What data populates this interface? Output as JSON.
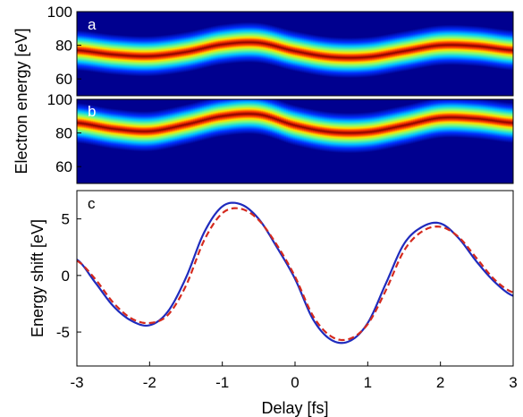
{
  "panel_labels": {
    "a": "a",
    "b": "b",
    "c": "c"
  },
  "colors": {
    "solid_curve": "#1f2bbd",
    "dashed_curve": "#d42a1e",
    "spectrogram_background": "#00008f"
  },
  "chart_data": [
    {
      "type": "heatmap",
      "panel": "a",
      "ylabel": "Electron energy [eV]",
      "ylim": [
        50,
        100
      ],
      "xlim": [
        -3,
        3
      ],
      "yticks": [
        "60",
        "80",
        "100"
      ],
      "colormap": "jet",
      "ridge": {
        "x": [
          -3,
          -2.5,
          -2,
          -1.5,
          -1,
          -0.5,
          0,
          0.5,
          1,
          1.5,
          2,
          2.5,
          3
        ],
        "y": [
          77,
          74.5,
          73.5,
          76,
          80.5,
          81.5,
          76.5,
          73,
          73,
          76.5,
          80,
          79.5,
          77
        ]
      }
    },
    {
      "type": "heatmap",
      "panel": "b",
      "ylabel": "Electron energy [eV]",
      "ylim": [
        50,
        100
      ],
      "xlim": [
        -3,
        3
      ],
      "yticks": [
        "60",
        "80",
        "100"
      ],
      "colormap": "jet",
      "ridge": {
        "x": [
          -3,
          -2.5,
          -2,
          -1.5,
          -1,
          -0.5,
          0,
          0.5,
          1,
          1.5,
          2,
          2.5,
          3
        ],
        "y": [
          86,
          82.5,
          81,
          85,
          90,
          91,
          84.5,
          80.5,
          80.5,
          84.5,
          89,
          88.5,
          86
        ]
      }
    },
    {
      "type": "line",
      "panel": "c",
      "xlabel": "Delay [fs]",
      "ylabel": "Energy shift [eV]",
      "xlim": [
        -3,
        3
      ],
      "ylim": [
        -8,
        7.5
      ],
      "xticks": [
        "-3",
        "-2",
        "-1",
        "0",
        "1",
        "2",
        "3"
      ],
      "yticks": [
        "-5",
        "0",
        "5"
      ],
      "grid": false,
      "series": [
        {
          "style": "solid",
          "x": [
            -3,
            -2.75,
            -2.5,
            -2.25,
            -2,
            -1.75,
            -1.5,
            -1.25,
            -1,
            -0.75,
            -0.5,
            -0.25,
            0,
            0.25,
            0.5,
            0.75,
            1,
            1.25,
            1.5,
            1.75,
            2,
            2.25,
            2.5,
            2.75,
            3
          ],
          "y": [
            1.4,
            -0.6,
            -2.7,
            -4.0,
            -4.4,
            -3.2,
            -0.2,
            3.8,
            6.1,
            6.3,
            5.0,
            2.5,
            -0.3,
            -3.9,
            -5.7,
            -5.8,
            -4.2,
            -0.7,
            2.8,
            4.3,
            4.6,
            3.3,
            1.2,
            -0.6,
            -1.8
          ]
        },
        {
          "style": "dashed",
          "x": [
            -3,
            -2.75,
            -2.5,
            -2.25,
            -2,
            -1.75,
            -1.5,
            -1.25,
            -1,
            -0.75,
            -0.5,
            -0.25,
            0,
            0.25,
            0.5,
            0.75,
            1,
            1.25,
            1.5,
            1.75,
            2,
            2.25,
            2.5,
            2.75,
            3
          ],
          "y": [
            1.3,
            -0.3,
            -2.4,
            -3.8,
            -4.2,
            -3.5,
            -0.9,
            3.1,
            5.5,
            5.9,
            4.9,
            2.7,
            -0.1,
            -3.6,
            -5.4,
            -5.6,
            -4.3,
            -1.3,
            2.2,
            3.9,
            4.3,
            3.4,
            1.5,
            -0.4,
            -1.5
          ]
        }
      ]
    }
  ]
}
